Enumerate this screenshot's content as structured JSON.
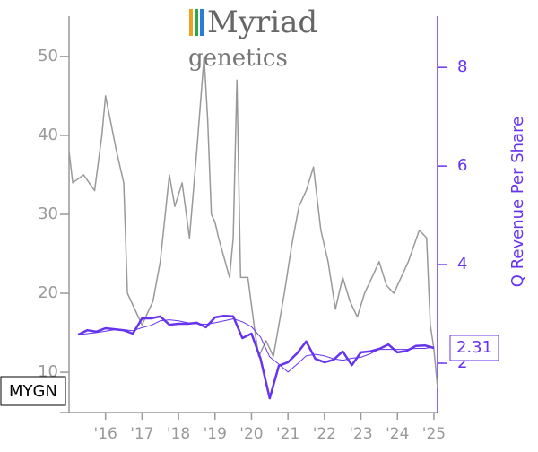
{
  "chart_data": {
    "type": "line",
    "logo": {
      "name": "Myriad",
      "tagline": "genetics"
    },
    "ticker": "MYGN",
    "y2label": "Q Revenue Per Share",
    "xlim": [
      2015,
      2025.1
    ],
    "xticks": [
      {
        "value": 2016,
        "label": "'16"
      },
      {
        "value": 2017,
        "label": "'17"
      },
      {
        "value": 2018,
        "label": "'18"
      },
      {
        "value": 2019,
        "label": "'19"
      },
      {
        "value": 2020,
        "label": "'20"
      },
      {
        "value": 2021,
        "label": "'21"
      },
      {
        "value": 2022,
        "label": "'22"
      },
      {
        "value": 2023,
        "label": "'23"
      },
      {
        "value": 2024,
        "label": "'24"
      },
      {
        "value": 2025,
        "label": "'25"
      }
    ],
    "ylim": [
      4.9,
      55.1
    ],
    "yticks": [
      10,
      20,
      30,
      40,
      50
    ],
    "y2lim": [
      1,
      9.04
    ],
    "y2ticks": [
      2,
      4,
      6,
      8
    ],
    "series": [
      {
        "color": "#999999",
        "width": 1.5,
        "x": [
          2015.0,
          2015.1,
          2015.4,
          2015.7,
          2015.9,
          2016.0,
          2016.3,
          2016.5,
          2016.6,
          2016.9,
          2017.0,
          2017.3,
          2017.5,
          2017.75,
          2017.9,
          2018.1,
          2018.3,
          2018.5,
          2018.7,
          2018.8,
          2018.9,
          2019.0,
          2019.1,
          2019.4,
          2019.5,
          2019.6,
          2019.7,
          2019.9,
          2020.1,
          2020.2,
          2020.4,
          2020.6,
          2020.9,
          2021.1,
          2021.3,
          2021.5,
          2021.7,
          2021.9,
          2022.1,
          2022.3,
          2022.5,
          2022.7,
          2022.9,
          2023.1,
          2023.3,
          2023.5,
          2023.7,
          2023.9,
          2024.1,
          2024.3,
          2024.6,
          2024.8,
          2024.9,
          2025.0,
          2025.1
        ],
        "values": [
          38,
          34,
          35,
          33,
          40,
          45,
          38,
          34,
          20,
          17,
          16,
          19,
          24,
          35,
          31,
          34,
          27,
          38,
          50,
          42,
          30,
          29,
          27,
          22,
          27,
          47,
          22,
          22,
          15,
          12,
          14,
          12,
          20,
          26,
          31,
          33,
          36,
          28,
          24,
          18,
          22,
          19,
          17,
          20,
          22,
          24,
          21,
          20,
          22,
          24,
          28,
          27,
          16,
          13,
          8
        ]
      },
      {
        "color": "#6633ee",
        "width": 1,
        "axis": "y2",
        "x": [
          2015.25,
          2015.5,
          2015.75,
          2016.0,
          2016.25,
          2016.5,
          2016.75,
          2017.0,
          2017.25,
          2017.5,
          2017.75,
          2018.0,
          2018.25,
          2018.5,
          2018.75,
          2019.0,
          2019.25,
          2019.5,
          2019.75,
          2020.0,
          2020.25,
          2020.5,
          2020.75,
          2021.0,
          2021.25,
          2021.5,
          2021.75,
          2022.0,
          2022.25,
          2022.5,
          2022.75,
          2023.0,
          2023.25,
          2023.5,
          2023.75,
          2024.0,
          2024.25,
          2024.5,
          2024.75,
          2025.0
        ],
        "values": [
          2.58,
          2.6,
          2.62,
          2.65,
          2.68,
          2.68,
          2.66,
          2.72,
          2.77,
          2.86,
          2.88,
          2.86,
          2.82,
          2.8,
          2.79,
          2.82,
          2.86,
          2.9,
          2.84,
          2.74,
          2.53,
          2.13,
          1.98,
          1.82,
          1.98,
          2.15,
          2.18,
          2.15,
          2.09,
          2.06,
          2.1,
          2.12,
          2.19,
          2.28,
          2.28,
          2.28,
          2.28,
          2.3,
          2.3,
          2.33
        ]
      },
      {
        "color": "#6633ee",
        "width": 2.5,
        "axis": "y2",
        "x": [
          2015.25,
          2015.5,
          2015.75,
          2016.0,
          2016.25,
          2016.5,
          2016.75,
          2017.0,
          2017.25,
          2017.5,
          2017.75,
          2018.0,
          2018.25,
          2018.5,
          2018.75,
          2019.0,
          2019.25,
          2019.5,
          2019.75,
          2020.0,
          2020.25,
          2020.5,
          2020.75,
          2021.0,
          2021.25,
          2021.5,
          2021.75,
          2022.0,
          2022.25,
          2022.5,
          2022.75,
          2023.0,
          2023.25,
          2023.5,
          2023.75,
          2024.0,
          2024.25,
          2024.5,
          2024.75,
          2025.0
        ],
        "values": [
          2.58,
          2.67,
          2.64,
          2.71,
          2.69,
          2.67,
          2.6,
          2.91,
          2.91,
          2.95,
          2.78,
          2.8,
          2.8,
          2.82,
          2.73,
          2.93,
          2.96,
          2.95,
          2.51,
          2.6,
          2.09,
          1.29,
          1.95,
          2.02,
          2.2,
          2.44,
          2.09,
          2.02,
          2.07,
          2.24,
          1.96,
          2.22,
          2.24,
          2.29,
          2.38,
          2.22,
          2.25,
          2.35,
          2.36,
          2.31
        ]
      }
    ]
  }
}
